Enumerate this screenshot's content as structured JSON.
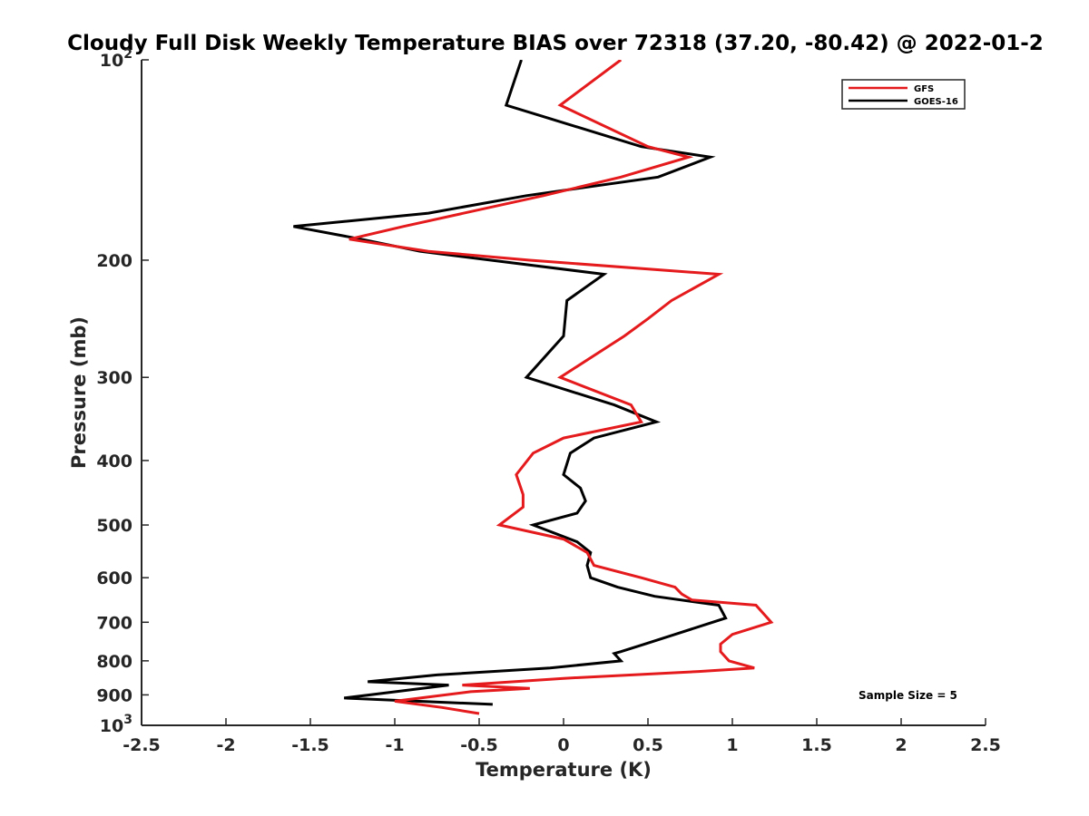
{
  "chart_data": {
    "type": "line",
    "title": "Cloudy Full Disk Weekly Temperature BIAS over 72318 (37.20, -80.42) @ 2022-01-2",
    "xlabel": "Temperature (K)",
    "ylabel": "Pressure (mb)",
    "xlim": [
      -2.5,
      2.5
    ],
    "ylim": [
      100,
      1000
    ],
    "y_scale": "log",
    "y_reversed": true,
    "grid": false,
    "legend_position": "top-right",
    "x_ticks": [
      {
        "value": -2.5,
        "label": "-2.5"
      },
      {
        "value": -2,
        "label": "-2"
      },
      {
        "value": -1.5,
        "label": "-1.5"
      },
      {
        "value": -1,
        "label": "-1"
      },
      {
        "value": -0.5,
        "label": "-0.5"
      },
      {
        "value": 0,
        "label": "0"
      },
      {
        "value": 0.5,
        "label": "0.5"
      },
      {
        "value": 1,
        "label": "1"
      },
      {
        "value": 1.5,
        "label": "1.5"
      },
      {
        "value": 2,
        "label": "2"
      },
      {
        "value": 2.5,
        "label": "2.5"
      }
    ],
    "y_ticks": [
      {
        "value": 100,
        "base": "10",
        "exp": "2"
      },
      {
        "value": 200,
        "base": "200",
        "exp": ""
      },
      {
        "value": 300,
        "base": "300",
        "exp": ""
      },
      {
        "value": 400,
        "base": "400",
        "exp": ""
      },
      {
        "value": 500,
        "base": "500",
        "exp": ""
      },
      {
        "value": 600,
        "base": "600",
        "exp": ""
      },
      {
        "value": 700,
        "base": "700",
        "exp": ""
      },
      {
        "value": 800,
        "base": "800",
        "exp": ""
      },
      {
        "value": 900,
        "base": "900",
        "exp": ""
      },
      {
        "value": 1000,
        "base": "10",
        "exp": "3"
      }
    ],
    "series": [
      {
        "name": "GFS",
        "color": "#e41a1c",
        "points": [
          [
            0.34,
            100
          ],
          [
            -0.02,
            117
          ],
          [
            0.5,
            135
          ],
          [
            0.74,
            140
          ],
          [
            0.34,
            150
          ],
          [
            -0.12,
            160
          ],
          [
            -0.95,
            178
          ],
          [
            -1.27,
            186
          ],
          [
            -0.8,
            194
          ],
          [
            -0.2,
            200
          ],
          [
            0.92,
            210
          ],
          [
            0.64,
            230
          ],
          [
            0.5,
            245
          ],
          [
            0.36,
            260
          ],
          [
            -0.02,
            300
          ],
          [
            0.4,
            330
          ],
          [
            0.46,
            350
          ],
          [
            0.0,
            370
          ],
          [
            -0.18,
            390
          ],
          [
            -0.28,
            420
          ],
          [
            -0.24,
            450
          ],
          [
            -0.24,
            470
          ],
          [
            -0.38,
            500
          ],
          [
            0.0,
            525
          ],
          [
            0.14,
            550
          ],
          [
            0.18,
            575
          ],
          [
            0.46,
            600
          ],
          [
            0.66,
            620
          ],
          [
            0.7,
            635
          ],
          [
            0.76,
            648
          ],
          [
            1.14,
            660
          ],
          [
            1.23,
            700
          ],
          [
            1.0,
            730
          ],
          [
            0.93,
            755
          ],
          [
            0.93,
            775
          ],
          [
            0.98,
            800
          ],
          [
            1.13,
            820
          ],
          [
            0.8,
            830
          ],
          [
            0.0,
            850
          ],
          [
            -0.6,
            870
          ],
          [
            -0.2,
            880
          ],
          [
            -0.55,
            890
          ],
          [
            -1.0,
            920
          ],
          [
            -0.72,
            940
          ],
          [
            -0.5,
            960
          ]
        ]
      },
      {
        "name": "GOES-16",
        "color": "#000000",
        "points": [
          [
            -0.25,
            100
          ],
          [
            -0.34,
            117
          ],
          [
            0.46,
            135
          ],
          [
            0.87,
            140
          ],
          [
            0.56,
            150
          ],
          [
            -0.22,
            160
          ],
          [
            -0.8,
            170
          ],
          [
            -1.6,
            178
          ],
          [
            -1.2,
            186
          ],
          [
            -0.85,
            194
          ],
          [
            0.24,
            210
          ],
          [
            0.02,
            230
          ],
          [
            0.0,
            260
          ],
          [
            -0.22,
            300
          ],
          [
            0.3,
            330
          ],
          [
            0.55,
            350
          ],
          [
            0.18,
            370
          ],
          [
            0.04,
            390
          ],
          [
            0.0,
            420
          ],
          [
            0.1,
            440
          ],
          [
            0.13,
            460
          ],
          [
            0.08,
            480
          ],
          [
            -0.18,
            500
          ],
          [
            0.08,
            530
          ],
          [
            0.16,
            550
          ],
          [
            0.14,
            575
          ],
          [
            0.16,
            600
          ],
          [
            0.32,
            620
          ],
          [
            0.54,
            640
          ],
          [
            0.92,
            660
          ],
          [
            0.96,
            690
          ],
          [
            0.66,
            730
          ],
          [
            0.48,
            755
          ],
          [
            0.34,
            775
          ],
          [
            0.3,
            780
          ],
          [
            0.34,
            800
          ],
          [
            -0.08,
            820
          ],
          [
            -0.75,
            840
          ],
          [
            -1.16,
            860
          ],
          [
            -0.68,
            870
          ],
          [
            -1.3,
            910
          ],
          [
            -0.42,
            930
          ]
        ]
      }
    ],
    "annotation": "Sample Size = 5"
  }
}
